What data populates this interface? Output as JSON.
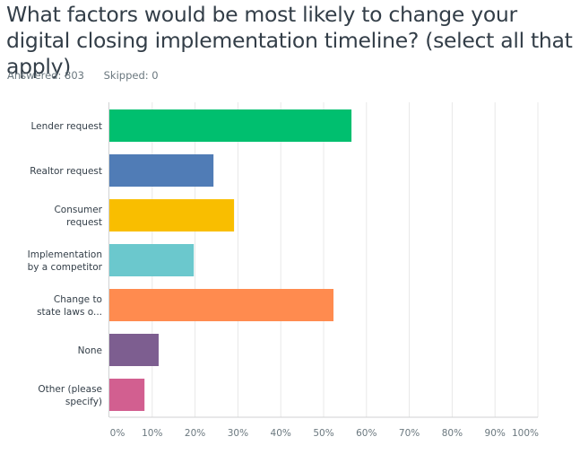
{
  "question": {
    "title": "What factors would be most likely to change your digital closing implementation timeline? (select all that apply)",
    "answered": "Answered: 803",
    "skipped": "Skipped: 0"
  },
  "chart_data": {
    "type": "bar",
    "orientation": "horizontal",
    "title": "What factors would be most likely to change your digital closing implementation timeline? (select all that apply)",
    "xlabel": "",
    "ylabel": "",
    "xlim": [
      0,
      100
    ],
    "grid": true,
    "categories": [
      [
        "Lender request"
      ],
      [
        "Realtor request"
      ],
      [
        "Consumer",
        "request"
      ],
      [
        "Implementation",
        "by a competitor"
      ],
      [
        "Change to",
        "state laws o..."
      ],
      [
        "None"
      ],
      [
        "Other (please",
        "specify)"
      ]
    ],
    "values": [
      56.5,
      24.3,
      29.1,
      19.7,
      52.3,
      11.5,
      8.2
    ],
    "colors": [
      "#00bf6f",
      "#507cb6",
      "#f9be00",
      "#6bc8cd",
      "#ff8b4f",
      "#7d5e90",
      "#d25f90"
    ],
    "ticks": [
      0,
      10,
      20,
      30,
      40,
      50,
      60,
      70,
      80,
      90,
      100
    ],
    "tick_labels": [
      "0%",
      "10%",
      "20%",
      "30%",
      "40%",
      "50%",
      "60%",
      "70%",
      "80%",
      "90%",
      "100%"
    ]
  }
}
